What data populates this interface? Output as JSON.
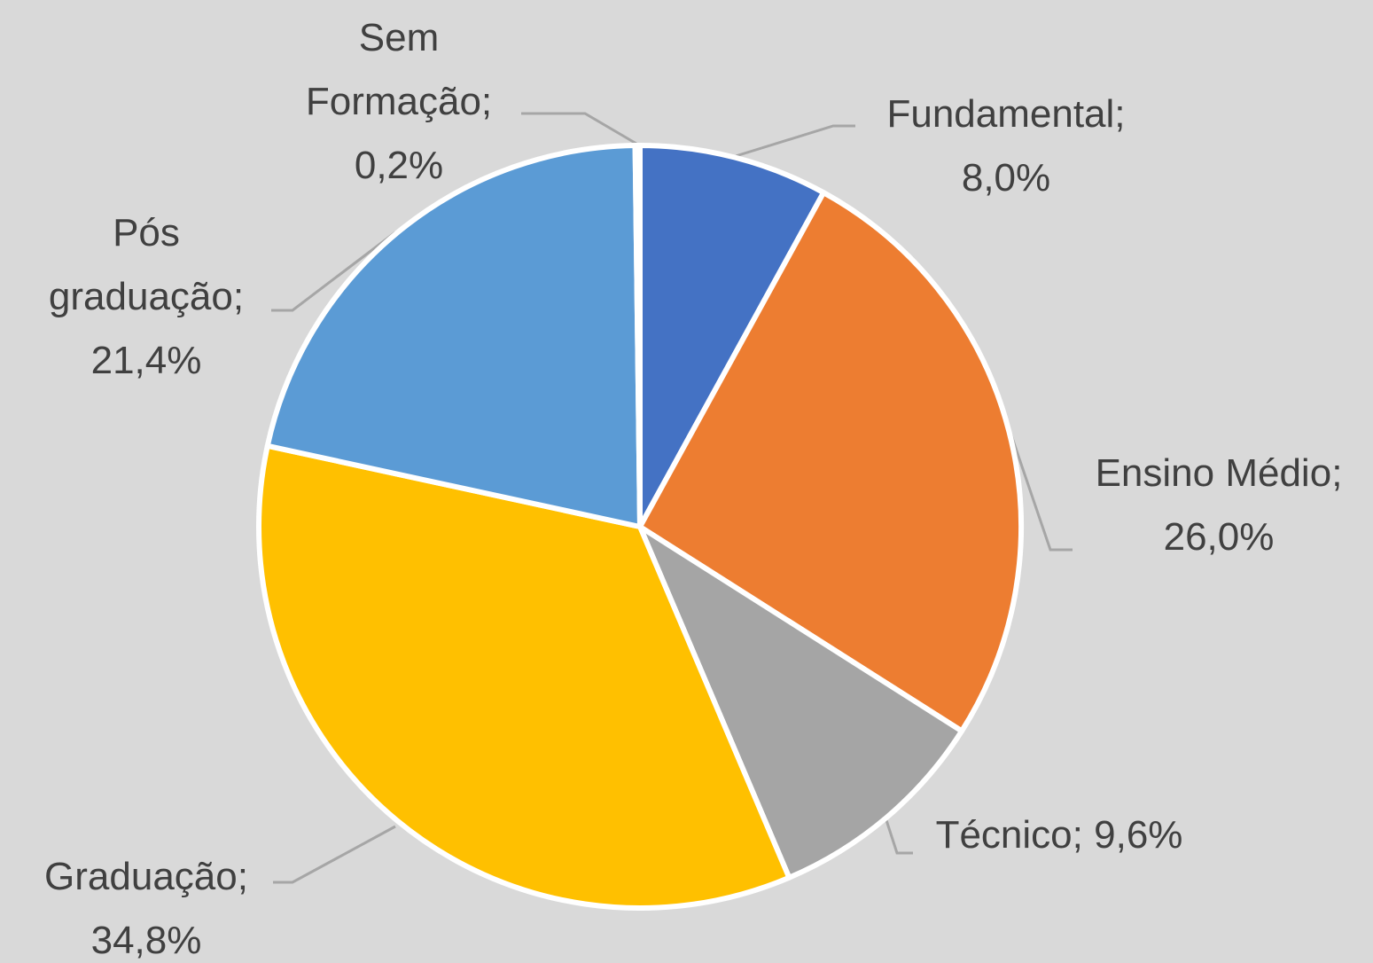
{
  "chart_data": {
    "type": "pie",
    "categories": [
      "Fundamental",
      "Ensino Médio",
      "Técnico",
      "Graduação",
      "Pós graduação",
      "Sem Formação"
    ],
    "values": [
      8.0,
      26.0,
      9.6,
      34.8,
      21.4,
      0.2
    ],
    "value_labels": [
      "8,0%",
      "26,0%",
      "9,6%",
      "34,8%",
      "21,4%",
      "0,2%"
    ],
    "label_separator": ";",
    "colors": [
      "#4472c4",
      "#ed7d31",
      "#a5a5a5",
      "#ffc000",
      "#5b9bd5",
      "#70ad47"
    ]
  }
}
